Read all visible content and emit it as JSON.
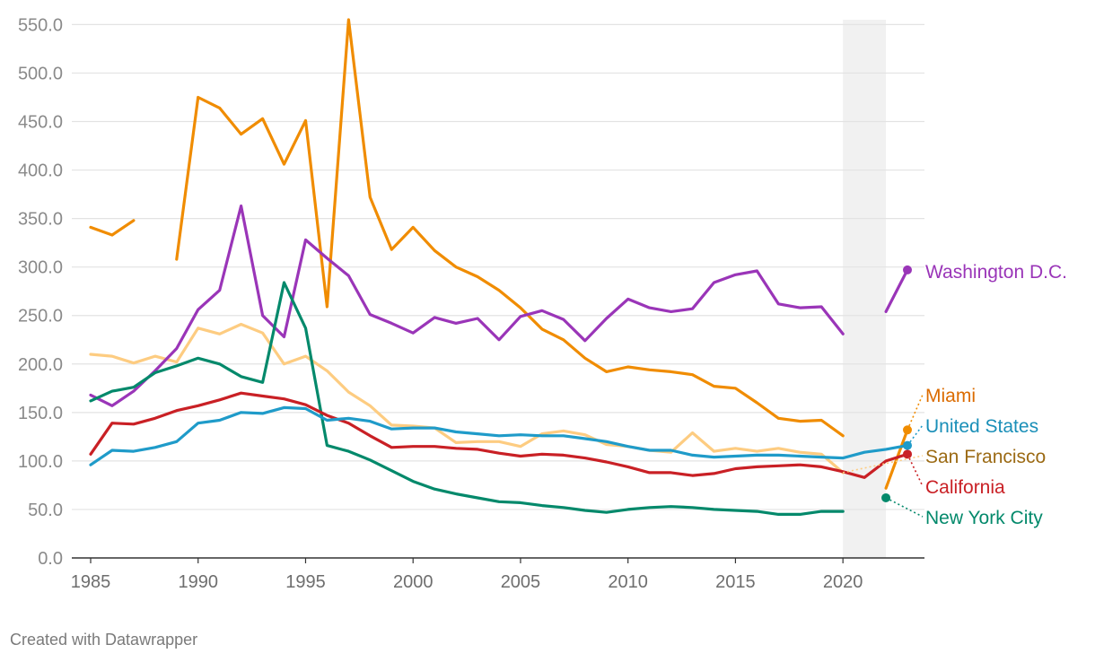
{
  "chart_data": {
    "type": "line",
    "title": "",
    "xlabel": "",
    "ylabel": "",
    "xlim": [
      1985,
      2023
    ],
    "ylim": [
      0,
      555
    ],
    "x_ticks": [
      1985,
      1990,
      1995,
      2000,
      2005,
      2010,
      2015,
      2020
    ],
    "y_ticks": [
      0,
      50,
      100,
      150,
      200,
      250,
      300,
      350,
      400,
      450,
      500,
      550
    ],
    "y_tick_labels": [
      "0.0",
      "50.0",
      "100.0",
      "150.0",
      "200.0",
      "250.0",
      "300.0",
      "350.0",
      "400.0",
      "450.0",
      "500.0",
      "550.0"
    ],
    "shaded_range": [
      2020,
      2022
    ],
    "series": [
      {
        "name": "San Francisco",
        "color": "#fdcc81",
        "label_color": "#9b6a14",
        "label": "San Francisco",
        "x": [
          1985,
          1986,
          1987,
          1988,
          1989,
          1990,
          1991,
          1992,
          1993,
          1994,
          1995,
          1996,
          1997,
          1998,
          1999,
          2000,
          2001,
          2002,
          2003,
          2004,
          2005,
          2006,
          2007,
          2008,
          2009,
          2010,
          2011,
          2012,
          2013,
          2014,
          2015,
          2016,
          2017,
          2018,
          2019,
          2020
        ],
        "values": [
          210,
          208,
          201,
          208,
          202,
          237,
          231,
          241,
          232,
          200,
          208,
          193,
          171,
          157,
          137,
          136,
          134,
          119,
          120,
          120,
          115,
          128,
          131,
          127,
          117,
          115,
          111,
          109,
          129,
          110,
          113,
          110,
          113,
          109,
          107,
          88
        ],
        "end": null
      },
      {
        "name": "Miami",
        "color": "#f08c00",
        "label_color": "#db6b00",
        "label": "Miami",
        "x": [
          1985,
          1986,
          1987,
          1988,
          1989,
          1990,
          1991,
          1992,
          1993,
          1994,
          1995,
          1996,
          1997,
          1998,
          1999,
          2000,
          2001,
          2002,
          2003,
          2004,
          2005,
          2006,
          2007,
          2008,
          2009,
          2010,
          2011,
          2012,
          2013,
          2014,
          2015,
          2016,
          2017,
          2018,
          2019,
          2020,
          2021,
          2022,
          2023
        ],
        "values": [
          341,
          333,
          348,
          null,
          308,
          475,
          464,
          437,
          453,
          406,
          451,
          259,
          555,
          372,
          318,
          341,
          317,
          300,
          290,
          276,
          258,
          236,
          225,
          206,
          192,
          197,
          194,
          192,
          189,
          177,
          175,
          160,
          144,
          141,
          142,
          126,
          null,
          72,
          132
        ],
        "end": 132
      },
      {
        "name": "Washington D.C.",
        "color": "#9a35b8",
        "label_color": "#9a35b8",
        "label": "Washington D.C.",
        "x": [
          1985,
          1986,
          1987,
          1988,
          1989,
          1990,
          1991,
          1992,
          1993,
          1994,
          1995,
          1996,
          1997,
          1998,
          1999,
          2000,
          2001,
          2002,
          2003,
          2004,
          2005,
          2006,
          2007,
          2008,
          2009,
          2010,
          2011,
          2012,
          2013,
          2014,
          2015,
          2016,
          2017,
          2018,
          2019,
          2020,
          2021,
          2022,
          2023
        ],
        "values": [
          168,
          157,
          172,
          193,
          216,
          256,
          276,
          363,
          250,
          228,
          328,
          309,
          291,
          251,
          242,
          232,
          248,
          242,
          247,
          225,
          249,
          255,
          246,
          224,
          247,
          267,
          258,
          254,
          257,
          284,
          292,
          296,
          262,
          258,
          259,
          231,
          null,
          254,
          297
        ],
        "end": 297
      },
      {
        "name": "New York City",
        "color": "#03896b",
        "label_color": "#03896b",
        "label": "New York City",
        "x": [
          1985,
          1986,
          1987,
          1988,
          1989,
          1990,
          1991,
          1992,
          1993,
          1994,
          1995,
          1996,
          1997,
          1998,
          1999,
          2000,
          2001,
          2002,
          2003,
          2004,
          2005,
          2006,
          2007,
          2008,
          2009,
          2010,
          2011,
          2012,
          2013,
          2014,
          2015,
          2016,
          2017,
          2018,
          2019,
          2020,
          2021,
          2022
        ],
        "values": [
          162,
          172,
          176,
          191,
          198,
          206,
          200,
          187,
          181,
          284,
          237,
          116,
          110,
          101,
          90,
          79,
          71,
          66,
          62,
          58,
          57,
          54,
          52,
          49,
          47,
          50,
          52,
          53,
          52,
          50,
          49,
          48,
          45,
          45,
          48,
          48,
          null,
          62
        ],
        "end": 62
      },
      {
        "name": "California",
        "color": "#c92025",
        "label_color": "#c92025",
        "label": "California",
        "x": [
          1985,
          1986,
          1987,
          1988,
          1989,
          1990,
          1991,
          1992,
          1993,
          1994,
          1995,
          1996,
          1997,
          1998,
          1999,
          2000,
          2001,
          2002,
          2003,
          2004,
          2005,
          2006,
          2007,
          2008,
          2009,
          2010,
          2011,
          2012,
          2013,
          2014,
          2015,
          2016,
          2017,
          2018,
          2019,
          2020,
          2021,
          2022,
          2023
        ],
        "values": [
          107,
          139,
          138,
          144,
          152,
          157,
          163,
          170,
          167,
          164,
          158,
          147,
          139,
          126,
          114,
          115,
          115,
          113,
          112,
          108,
          105,
          107,
          106,
          103,
          99,
          94,
          88,
          88,
          85,
          87,
          92,
          94,
          95,
          96,
          94,
          89,
          83,
          100,
          107
        ],
        "end": 107
      },
      {
        "name": "United States",
        "color": "#1f9bc9",
        "label_color": "#1a8fb8",
        "label": "United States",
        "x": [
          1985,
          1986,
          1987,
          1988,
          1989,
          1990,
          1991,
          1992,
          1993,
          1994,
          1995,
          1996,
          1997,
          1998,
          1999,
          2000,
          2001,
          2002,
          2003,
          2004,
          2005,
          2006,
          2007,
          2008,
          2009,
          2010,
          2011,
          2012,
          2013,
          2014,
          2015,
          2016,
          2017,
          2018,
          2019,
          2020,
          2021,
          2022,
          2023
        ],
        "values": [
          96,
          111,
          110,
          114,
          120,
          139,
          142,
          150,
          149,
          155,
          154,
          142,
          144,
          141,
          133,
          134,
          134,
          130,
          128,
          126,
          127,
          126,
          126,
          123,
          120,
          115,
          111,
          111,
          106,
          104,
          105,
          106,
          106,
          105,
          104,
          103,
          109,
          112,
          116
        ],
        "end": 116
      }
    ],
    "credit": "Created with Datawrapper"
  }
}
